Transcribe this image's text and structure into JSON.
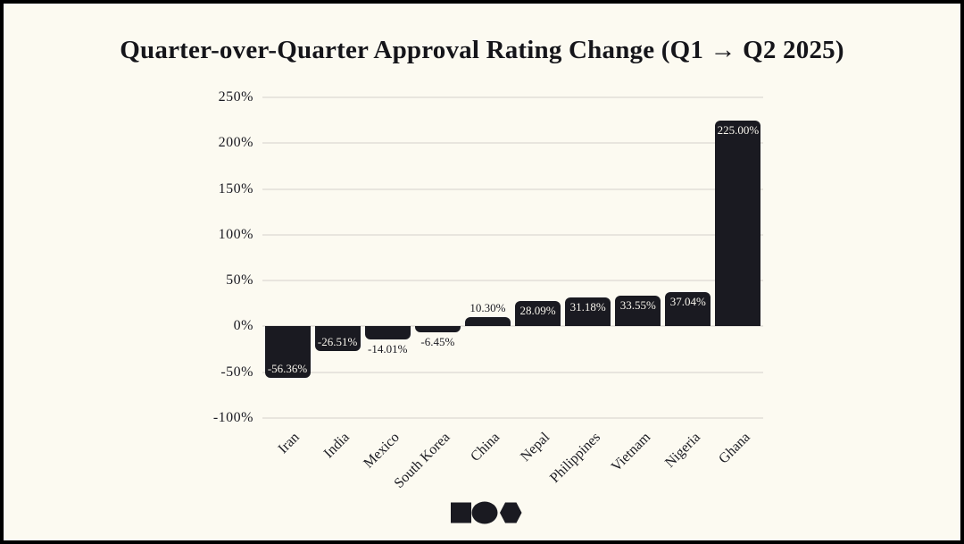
{
  "frame": {
    "background": "#fcfaf1",
    "border_color": "#000000"
  },
  "title": "Quarter-over-Quarter Approval Rating Change (Q1 → Q2 2025)",
  "chart_data": {
    "type": "bar",
    "title": "Quarter-over-Quarter Approval Rating Change (Q1 → Q2 2025)",
    "categories": [
      "Iran",
      "India",
      "Mexico",
      "South Korea",
      "China",
      "Nepal",
      "Philippines",
      "Vietnam",
      "Nigeria",
      "Ghana"
    ],
    "values": [
      -56.36,
      -26.51,
      -14.01,
      -6.45,
      10.3,
      28.09,
      31.18,
      33.55,
      37.04,
      225.0
    ],
    "value_labels": [
      "-56.36%",
      "-26.51%",
      "-14.01%",
      "-6.45%",
      "10.30%",
      "28.09%",
      "31.18%",
      "33.55%",
      "37.04%",
      "225.00%"
    ],
    "xlabel": "",
    "ylabel": "",
    "ylim": [
      -100,
      250
    ],
    "yticks": [
      250,
      200,
      150,
      100,
      50,
      0,
      -50,
      -100
    ],
    "ytick_labels": [
      "250%",
      "200%",
      "150%",
      "100%",
      "50%",
      "0%",
      "-50%",
      "-100%"
    ],
    "grid": true,
    "legend": false,
    "bar_color": "#1a1a21",
    "gridline_color": "#e8e5de",
    "axis_text_color": "#1a1a21",
    "value_label_inside_color": "#f7f4ec",
    "value_label_outside_color": "#1a1a21"
  },
  "footer": {
    "logo_shapes": [
      "square",
      "circle",
      "hexagon"
    ],
    "logo_color": "#1a1a21"
  }
}
